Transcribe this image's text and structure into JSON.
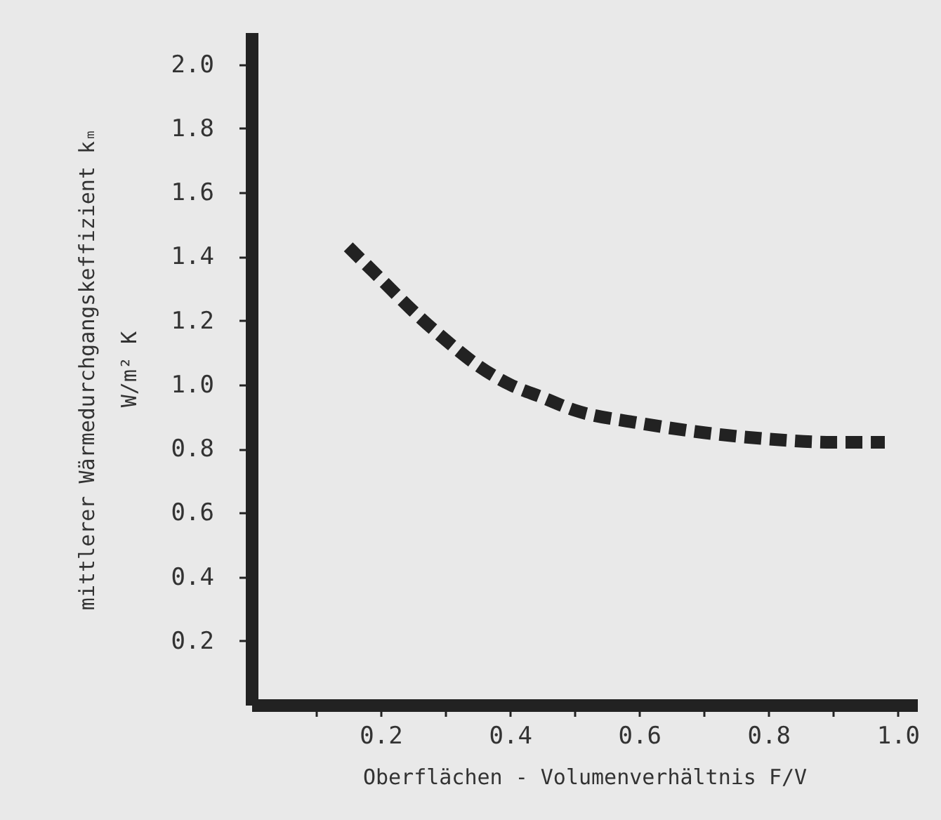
{
  "chart_data": {
    "type": "line",
    "xlabel": "Oberflächen - Volumenverhältnis F/V",
    "ylabel": "mittlerer Wärmedurchgangskeffizient kₘ\nW/m² K",
    "x": [
      0.15,
      0.2,
      0.25,
      0.3,
      0.35,
      0.4,
      0.45,
      0.5,
      0.6,
      0.7,
      0.8,
      0.9,
      0.98
    ],
    "series": [
      {
        "color": "#222222",
        "values": [
          1.43,
          1.33,
          1.23,
          1.14,
          1.06,
          1.0,
          0.96,
          0.92,
          0.88,
          0.85,
          0.83,
          0.82,
          0.82
        ]
      }
    ],
    "xlim": [
      0,
      1.03
    ],
    "ylim": [
      0,
      2.1
    ],
    "xticks": [
      {
        "value": 0.1,
        "label": null
      },
      0.2,
      {
        "value": 0.3,
        "label": null
      },
      0.4,
      {
        "value": 0.5,
        "label": null
      },
      0.6,
      {
        "value": 0.7,
        "label": null
      },
      0.8,
      {
        "value": 0.9,
        "label": null
      },
      {
        "value": 1,
        "label": "1.0"
      }
    ],
    "yticks": [
      0.2,
      0.4,
      0.6,
      0.8,
      {
        "value": 1,
        "label": "1.0"
      },
      1.2,
      1.4,
      1.6,
      1.8,
      {
        "value": 2,
        "label": "2.0"
      }
    ],
    "grid": false,
    "marker": "none",
    "line_style": "dashed"
  }
}
